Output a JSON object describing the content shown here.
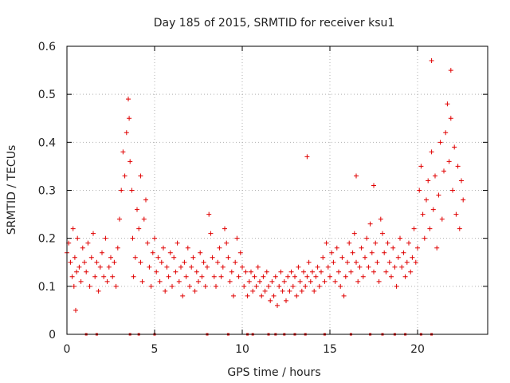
{
  "chart_data": {
    "type": "scatter",
    "title": "Day 185 of 2015, SRMTID for receiver ksu1",
    "xlabel": "GPS time / hours",
    "ylabel": "SRMTID / TECUs",
    "xlim": [
      0,
      24
    ],
    "ylim": [
      0,
      0.6
    ],
    "xticks": [
      0,
      5,
      10,
      15,
      20
    ],
    "xtick_labels": [
      "0",
      "5",
      "10",
      "15",
      "20"
    ],
    "yticks": [
      0,
      0.1,
      0.2,
      0.3,
      0.4,
      0.5,
      0.6
    ],
    "ytick_labels": [
      "0",
      "0.1",
      "0.2",
      "0.3",
      "0.4",
      "0.5",
      "0.6"
    ],
    "grid": true,
    "marker": "+",
    "color": "#e00000",
    "series": [
      {
        "name": "SRMTID",
        "points": [
          [
            0.0,
            0.17
          ],
          [
            0.1,
            0.19
          ],
          [
            0.2,
            0.15
          ],
          [
            0.3,
            0.12
          ],
          [
            0.35,
            0.22
          ],
          [
            0.4,
            0.1
          ],
          [
            0.45,
            0.16
          ],
          [
            0.5,
            0.05
          ],
          [
            0.55,
            0.13
          ],
          [
            0.6,
            0.2
          ],
          [
            0.7,
            0.14
          ],
          [
            0.8,
            0.11
          ],
          [
            0.9,
            0.18
          ],
          [
            1.0,
            0.15
          ],
          [
            1.1,
            0.13
          ],
          [
            1.2,
            0.19
          ],
          [
            1.3,
            0.1
          ],
          [
            1.4,
            0.16
          ],
          [
            1.5,
            0.21
          ],
          [
            1.6,
            0.12
          ],
          [
            1.7,
            0.15
          ],
          [
            1.8,
            0.09
          ],
          [
            1.9,
            0.14
          ],
          [
            2.0,
            0.17
          ],
          [
            2.1,
            0.12
          ],
          [
            2.2,
            0.2
          ],
          [
            2.3,
            0.11
          ],
          [
            2.4,
            0.14
          ],
          [
            2.5,
            0.16
          ],
          [
            2.6,
            0.12
          ],
          [
            2.7,
            0.15
          ],
          [
            2.8,
            0.1
          ],
          [
            2.9,
            0.18
          ],
          [
            3.0,
            0.24
          ],
          [
            3.1,
            0.3
          ],
          [
            3.2,
            0.38
          ],
          [
            3.3,
            0.33
          ],
          [
            3.4,
            0.42
          ],
          [
            3.5,
            0.49
          ],
          [
            3.55,
            0.45
          ],
          [
            3.6,
            0.36
          ],
          [
            3.7,
            0.3
          ],
          [
            3.75,
            0.2
          ],
          [
            3.8,
            0.12
          ],
          [
            3.9,
            0.16
          ],
          [
            4.0,
            0.26
          ],
          [
            4.1,
            0.22
          ],
          [
            4.2,
            0.15
          ],
          [
            4.3,
            0.11
          ],
          [
            4.4,
            0.24
          ],
          [
            4.5,
            0.28
          ],
          [
            4.6,
            0.19
          ],
          [
            4.7,
            0.14
          ],
          [
            4.8,
            0.1
          ],
          [
            4.9,
            0.17
          ],
          [
            5.0,
            0.2
          ],
          [
            5.1,
            0.13
          ],
          [
            5.2,
            0.16
          ],
          [
            5.3,
            0.11
          ],
          [
            5.4,
            0.15
          ],
          [
            5.5,
            0.18
          ],
          [
            5.6,
            0.09
          ],
          [
            5.7,
            0.14
          ],
          [
            5.8,
            0.12
          ],
          [
            5.9,
            0.17
          ],
          [
            6.0,
            0.1
          ],
          [
            6.1,
            0.16
          ],
          [
            6.2,
            0.13
          ],
          [
            6.3,
            0.19
          ],
          [
            6.4,
            0.11
          ],
          [
            6.5,
            0.14
          ],
          [
            6.6,
            0.08
          ],
          [
            6.7,
            0.15
          ],
          [
            6.8,
            0.12
          ],
          [
            6.9,
            0.18
          ],
          [
            7.0,
            0.1
          ],
          [
            7.1,
            0.14
          ],
          [
            7.2,
            0.16
          ],
          [
            7.3,
            0.09
          ],
          [
            7.4,
            0.13
          ],
          [
            7.5,
            0.11
          ],
          [
            7.6,
            0.17
          ],
          [
            7.7,
            0.12
          ],
          [
            7.8,
            0.15
          ],
          [
            7.9,
            0.1
          ],
          [
            8.0,
            0.14
          ],
          [
            8.1,
            0.25
          ],
          [
            8.2,
            0.21
          ],
          [
            8.3,
            0.16
          ],
          [
            8.4,
            0.12
          ],
          [
            8.5,
            0.1
          ],
          [
            8.6,
            0.15
          ],
          [
            8.7,
            0.18
          ],
          [
            8.8,
            0.12
          ],
          [
            8.9,
            0.14
          ],
          [
            9.0,
            0.22
          ],
          [
            9.1,
            0.19
          ],
          [
            9.2,
            0.16
          ],
          [
            9.3,
            0.11
          ],
          [
            9.4,
            0.13
          ],
          [
            9.5,
            0.08
          ],
          [
            9.6,
            0.15
          ],
          [
            9.7,
            0.2
          ],
          [
            9.8,
            0.12
          ],
          [
            9.9,
            0.17
          ],
          [
            10.0,
            0.14
          ],
          [
            10.1,
            0.1
          ],
          [
            10.2,
            0.13
          ],
          [
            10.3,
            0.08
          ],
          [
            10.4,
            0.11
          ],
          [
            10.5,
            0.13
          ],
          [
            10.6,
            0.09
          ],
          [
            10.7,
            0.12
          ],
          [
            10.8,
            0.1
          ],
          [
            10.9,
            0.14
          ],
          [
            11.0,
            0.11
          ],
          [
            11.1,
            0.08
          ],
          [
            11.2,
            0.12
          ],
          [
            11.3,
            0.09
          ],
          [
            11.4,
            0.13
          ],
          [
            11.5,
            0.1
          ],
          [
            11.6,
            0.07
          ],
          [
            11.7,
            0.11
          ],
          [
            11.8,
            0.08
          ],
          [
            11.9,
            0.12
          ],
          [
            12.0,
            0.06
          ],
          [
            12.1,
            0.1
          ],
          [
            12.2,
            0.13
          ],
          [
            12.3,
            0.09
          ],
          [
            12.4,
            0.11
          ],
          [
            12.5,
            0.07
          ],
          [
            12.6,
            0.12
          ],
          [
            12.7,
            0.09
          ],
          [
            12.8,
            0.13
          ],
          [
            12.9,
            0.1
          ],
          [
            13.0,
            0.12
          ],
          [
            13.1,
            0.08
          ],
          [
            13.2,
            0.14
          ],
          [
            13.3,
            0.11
          ],
          [
            13.4,
            0.09
          ],
          [
            13.5,
            0.13
          ],
          [
            13.6,
            0.1
          ],
          [
            13.7,
            0.12
          ],
          [
            13.8,
            0.15
          ],
          [
            13.9,
            0.11
          ],
          [
            14.0,
            0.13
          ],
          [
            14.1,
            0.09
          ],
          [
            14.2,
            0.12
          ],
          [
            14.3,
            0.14
          ],
          [
            14.4,
            0.1
          ],
          [
            14.5,
            0.13
          ],
          [
            14.6,
            0.16
          ],
          [
            14.7,
            0.11
          ],
          [
            14.8,
            0.19
          ],
          [
            14.9,
            0.14
          ],
          [
            15.0,
            0.12
          ],
          [
            15.1,
            0.17
          ],
          [
            15.2,
            0.15
          ],
          [
            15.3,
            0.11
          ],
          [
            15.4,
            0.18
          ],
          [
            15.5,
            0.13
          ],
          [
            15.6,
            0.1
          ],
          [
            15.7,
            0.16
          ],
          [
            15.8,
            0.08
          ],
          [
            15.9,
            0.12
          ],
          [
            16.0,
            0.15
          ],
          [
            16.1,
            0.19
          ],
          [
            16.2,
            0.13
          ],
          [
            16.3,
            0.17
          ],
          [
            16.4,
            0.21
          ],
          [
            16.5,
            0.15
          ],
          [
            16.6,
            0.11
          ],
          [
            16.7,
            0.14
          ],
          [
            16.8,
            0.18
          ],
          [
            16.9,
            0.12
          ],
          [
            17.0,
            0.16
          ],
          [
            17.1,
            0.2
          ],
          [
            17.2,
            0.14
          ],
          [
            17.3,
            0.23
          ],
          [
            17.4,
            0.17
          ],
          [
            17.5,
            0.13
          ],
          [
            17.6,
            0.19
          ],
          [
            17.7,
            0.15
          ],
          [
            17.8,
            0.11
          ],
          [
            17.9,
            0.24
          ],
          [
            18.0,
            0.21
          ],
          [
            18.1,
            0.17
          ],
          [
            18.2,
            0.13
          ],
          [
            18.3,
            0.19
          ],
          [
            18.4,
            0.15
          ],
          [
            18.5,
            0.12
          ],
          [
            18.6,
            0.18
          ],
          [
            18.7,
            0.14
          ],
          [
            18.8,
            0.1
          ],
          [
            18.9,
            0.16
          ],
          [
            19.0,
            0.2
          ],
          [
            19.1,
            0.14
          ],
          [
            19.2,
            0.17
          ],
          [
            19.3,
            0.12
          ],
          [
            19.4,
            0.15
          ],
          [
            19.5,
            0.19
          ],
          [
            19.6,
            0.13
          ],
          [
            19.7,
            0.16
          ],
          [
            19.8,
            0.22
          ],
          [
            19.9,
            0.15
          ],
          [
            20.0,
            0.18
          ],
          [
            20.1,
            0.3
          ],
          [
            20.2,
            0.35
          ],
          [
            20.3,
            0.25
          ],
          [
            20.4,
            0.2
          ],
          [
            20.5,
            0.28
          ],
          [
            20.6,
            0.32
          ],
          [
            20.7,
            0.22
          ],
          [
            20.8,
            0.38
          ],
          [
            20.9,
            0.26
          ],
          [
            21.0,
            0.33
          ],
          [
            21.1,
            0.18
          ],
          [
            21.2,
            0.29
          ],
          [
            21.3,
            0.4
          ],
          [
            21.4,
            0.24
          ],
          [
            21.5,
            0.34
          ],
          [
            21.6,
            0.42
          ],
          [
            21.7,
            0.48
          ],
          [
            21.8,
            0.36
          ],
          [
            21.9,
            0.45
          ],
          [
            22.0,
            0.3
          ],
          [
            22.1,
            0.39
          ],
          [
            22.2,
            0.25
          ],
          [
            22.3,
            0.35
          ],
          [
            22.4,
            0.22
          ],
          [
            22.5,
            0.32
          ],
          [
            22.6,
            0.28
          ],
          [
            20.8,
            0.57
          ],
          [
            21.9,
            0.55
          ],
          [
            13.7,
            0.37
          ],
          [
            16.5,
            0.33
          ],
          [
            17.5,
            0.31
          ],
          [
            4.2,
            0.33
          ]
        ]
      }
    ],
    "rug_x": [
      1.1,
      1.7,
      3.6,
      4.1,
      5.0,
      8.0,
      9.2,
      10.3,
      10.6,
      11.5,
      11.9,
      12.4,
      13.0,
      13.6,
      14.7,
      16.2,
      17.3,
      18.0,
      18.7,
      19.3,
      20.2,
      20.8
    ]
  }
}
